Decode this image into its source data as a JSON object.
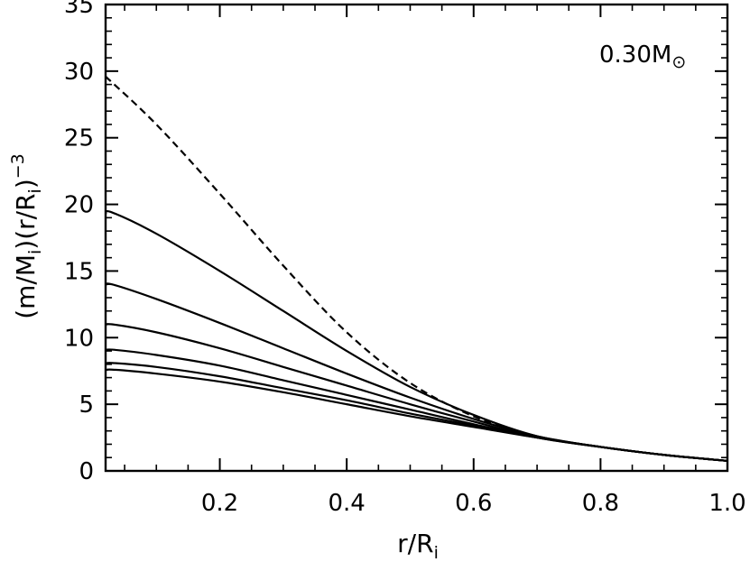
{
  "chart_data": {
    "type": "line",
    "title": "",
    "annotation": {
      "text": "0.30M",
      "symbol": "⊙"
    },
    "xlabel": {
      "base": "r/R",
      "sub": "i"
    },
    "ylabel": {
      "p1": "(m/M",
      "s1": "i",
      "p2": ")(r/R",
      "s2": "i",
      "p3": ")",
      "sup": "−3"
    },
    "xlim": [
      0.02,
      1.0
    ],
    "ylim": [
      0,
      35
    ],
    "xticks": [
      0.2,
      0.4,
      0.6,
      0.8,
      1.0
    ],
    "xtick_labels": [
      "0.2",
      "0.4",
      "0.6",
      "0.8",
      "1.0"
    ],
    "yticks": [
      0,
      5,
      10,
      15,
      20,
      25,
      30,
      35
    ],
    "ytick_labels": [
      "0",
      "5",
      "10",
      "15",
      "20",
      "25",
      "30",
      "35"
    ],
    "grid": false,
    "series": [
      {
        "style": "dashed",
        "x": [
          0.02,
          0.1,
          0.2,
          0.3,
          0.4,
          0.5,
          0.6,
          0.7,
          0.8,
          0.9,
          1.0
        ],
        "y": [
          29.6,
          26.0,
          20.8,
          15.4,
          10.4,
          6.6,
          4.1,
          2.6,
          1.8,
          1.2,
          0.75
        ]
      },
      {
        "style": "solid",
        "x": [
          0.02,
          0.03,
          0.1,
          0.2,
          0.3,
          0.4,
          0.5,
          0.6,
          0.7,
          0.8,
          0.9,
          1.0
        ],
        "y": [
          19.3,
          19.4,
          17.8,
          15.0,
          12.0,
          9.0,
          6.3,
          4.2,
          2.6,
          1.8,
          1.2,
          0.75
        ]
      },
      {
        "style": "solid",
        "x": [
          0.02,
          0.03,
          0.1,
          0.2,
          0.3,
          0.4,
          0.5,
          0.6,
          0.7,
          0.8,
          0.9,
          1.0
        ],
        "y": [
          13.9,
          14.0,
          12.9,
          11.1,
          9.2,
          7.3,
          5.5,
          3.9,
          2.6,
          1.8,
          1.2,
          0.75
        ]
      },
      {
        "style": "solid",
        "x": [
          0.02,
          0.03,
          0.1,
          0.2,
          0.3,
          0.4,
          0.5,
          0.6,
          0.7,
          0.8,
          0.9,
          1.0
        ],
        "y": [
          10.9,
          11.0,
          10.4,
          9.2,
          7.8,
          6.4,
          5.0,
          3.7,
          2.5,
          1.8,
          1.2,
          0.75
        ]
      },
      {
        "style": "solid",
        "x": [
          0.02,
          0.03,
          0.1,
          0.2,
          0.3,
          0.4,
          0.5,
          0.6,
          0.7,
          0.8,
          0.9,
          1.0
        ],
        "y": [
          9.0,
          9.1,
          8.7,
          7.9,
          6.8,
          5.7,
          4.6,
          3.5,
          2.5,
          1.8,
          1.2,
          0.75
        ]
      },
      {
        "style": "solid",
        "x": [
          0.02,
          0.03,
          0.1,
          0.2,
          0.3,
          0.4,
          0.5,
          0.6,
          0.7,
          0.8,
          0.9,
          1.0
        ],
        "y": [
          8.0,
          8.1,
          7.8,
          7.1,
          6.2,
          5.3,
          4.3,
          3.4,
          2.5,
          1.8,
          1.2,
          0.75
        ]
      },
      {
        "style": "solid",
        "x": [
          0.02,
          0.03,
          0.1,
          0.2,
          0.3,
          0.4,
          0.5,
          0.6,
          0.7,
          0.8,
          0.9,
          1.0
        ],
        "y": [
          7.5,
          7.6,
          7.3,
          6.7,
          5.9,
          5.0,
          4.1,
          3.3,
          2.5,
          1.8,
          1.2,
          0.75
        ]
      }
    ]
  }
}
